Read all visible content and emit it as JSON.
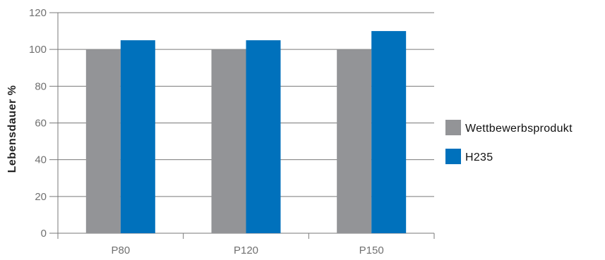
{
  "chart_data": {
    "type": "bar",
    "title": "",
    "xlabel": "",
    "ylabel": "Lebensdauer %",
    "ylim": [
      0,
      120
    ],
    "yticks": [
      0,
      20,
      40,
      60,
      80,
      100,
      120
    ],
    "grid": true,
    "legend_position": "right",
    "categories": [
      "P80",
      "P120",
      "P150"
    ],
    "series": [
      {
        "name": "Wettbewerbsprodukt",
        "values": [
          100,
          100,
          100
        ],
        "color": "#939497"
      },
      {
        "name": "H235",
        "values": [
          105,
          105,
          110
        ],
        "color": "#0071bc"
      }
    ]
  }
}
